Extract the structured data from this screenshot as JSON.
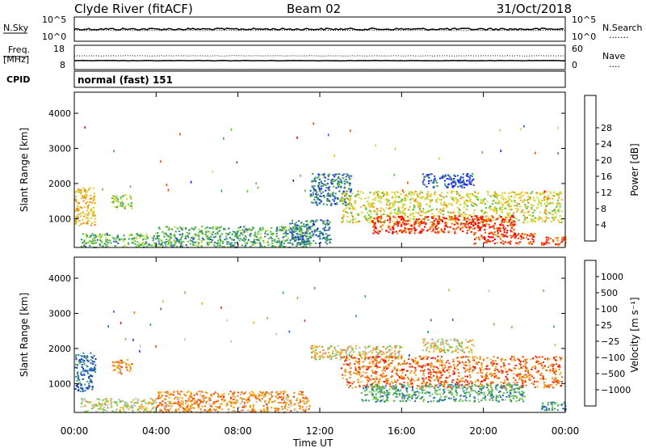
{
  "header": {
    "station": "Clyde River (fitACF)",
    "beam": "Beam 02",
    "date": "31/Oct/2018"
  },
  "sky_panel": {
    "left_label": "N.Sky",
    "left_top": "10^5",
    "left_bottom": "10^0",
    "right_top": "10^5",
    "right_bottom": "10^0",
    "right_label": "N.Search",
    "right_marker": "......."
  },
  "freq_panel": {
    "left_label_1": "Freq.",
    "left_label_2": "[MHz]",
    "left_top": "18",
    "left_bottom": "8",
    "right_top": "60",
    "right_bottom": "0",
    "right_label": "Nave",
    "right_marker": "...."
  },
  "cpid": {
    "label": "CPID",
    "value": "normal (fast) 151"
  },
  "chart_data": [
    {
      "type": "heatmap",
      "name": "power",
      "ylabel": "Slant Range [km]",
      "ylim": [
        180,
        4600
      ],
      "yticks": [
        "1000",
        "2000",
        "3000",
        "4000"
      ],
      "xlim": [
        0,
        24
      ],
      "xticks": [
        "00:00",
        "04:00",
        "08:00",
        "12:00",
        "16:00",
        "20:00",
        "00:00"
      ],
      "colorbar": {
        "label": "Power [dB]",
        "ticks": [
          "4",
          "8",
          "12",
          "16",
          "20",
          "24",
          "28"
        ],
        "colors": [
          "#1f1fff",
          "#2a5fb0",
          "#3a9a6a",
          "#5cc040",
          "#c8e040",
          "#f0c020",
          "#f08a10",
          "#f04a08",
          "#ff0000"
        ]
      },
      "regions": [
        {
          "x": [
            0.0,
            1.0
          ],
          "y": [
            800,
            1900
          ],
          "level": 0.65
        },
        {
          "x": [
            1.8,
            2.8
          ],
          "y": [
            1300,
            1700
          ],
          "level": 0.45
        },
        {
          "x": [
            0.3,
            4.0
          ],
          "y": [
            200,
            600
          ],
          "level": 0.35
        },
        {
          "x": [
            4.0,
            11.5
          ],
          "y": [
            200,
            800
          ],
          "level": 0.3
        },
        {
          "x": [
            10.5,
            12.5
          ],
          "y": [
            300,
            1000
          ],
          "level": 0.2
        },
        {
          "x": [
            11.5,
            13.5
          ],
          "y": [
            1400,
            2300
          ],
          "level": 0.2
        },
        {
          "x": [
            13.0,
            23.8
          ],
          "y": [
            900,
            1800
          ],
          "level": 0.55
        },
        {
          "x": [
            14.5,
            21.5
          ],
          "y": [
            600,
            1100
          ],
          "level": 0.92
        },
        {
          "x": [
            19.5,
            22.5
          ],
          "y": [
            300,
            600
          ],
          "level": 0.9
        },
        {
          "x": [
            22.8,
            24.0
          ],
          "y": [
            250,
            500
          ],
          "level": 0.85
        },
        {
          "x": [
            17.0,
            19.5
          ],
          "y": [
            1900,
            2300
          ],
          "level": 0.1
        }
      ]
    },
    {
      "type": "heatmap",
      "name": "velocity",
      "ylabel": "Slant Range [km]",
      "ylim": [
        180,
        4600
      ],
      "yticks": [
        "1000",
        "2000",
        "3000",
        "4000"
      ],
      "xlim": [
        0,
        24
      ],
      "xticks": [
        "00:00",
        "04:00",
        "08:00",
        "12:00",
        "16:00",
        "20:00",
        "00:00"
      ],
      "xlabel": "Time UT",
      "colorbar": {
        "label": "Velocity [m s⁻¹]",
        "ticks": [
          "1000",
          "500",
          "100",
          "25",
          "−25",
          "−100",
          "−500",
          "−1000"
        ],
        "colors": [
          "#1a3fc0",
          "#2a6ab8",
          "#3aa070",
          "#70c840",
          "#c0c0c0",
          "#f0b020",
          "#f08010",
          "#f04010",
          "#ff0000"
        ]
      },
      "regions": [
        {
          "x": [
            0.0,
            1.0
          ],
          "y": [
            800,
            1900
          ],
          "level": 0.1
        },
        {
          "x": [
            1.8,
            2.8
          ],
          "y": [
            1300,
            1700
          ],
          "level": 0.7
        },
        {
          "x": [
            0.3,
            4.0
          ],
          "y": [
            200,
            600
          ],
          "level": 0.5
        },
        {
          "x": [
            4.0,
            11.5
          ],
          "y": [
            200,
            800
          ],
          "level": 0.7
        },
        {
          "x": [
            11.5,
            16.0
          ],
          "y": [
            1700,
            2100
          ],
          "level": 0.55
        },
        {
          "x": [
            13.0,
            23.8
          ],
          "y": [
            900,
            1800
          ],
          "level": 0.8
        },
        {
          "x": [
            14.0,
            22.0
          ],
          "y": [
            500,
            1000
          ],
          "level": 0.3
        },
        {
          "x": [
            17.0,
            19.5
          ],
          "y": [
            1900,
            2300
          ],
          "level": 0.55
        },
        {
          "x": [
            22.8,
            24.0
          ],
          "y": [
            250,
            500
          ],
          "level": 0.2
        }
      ]
    }
  ]
}
